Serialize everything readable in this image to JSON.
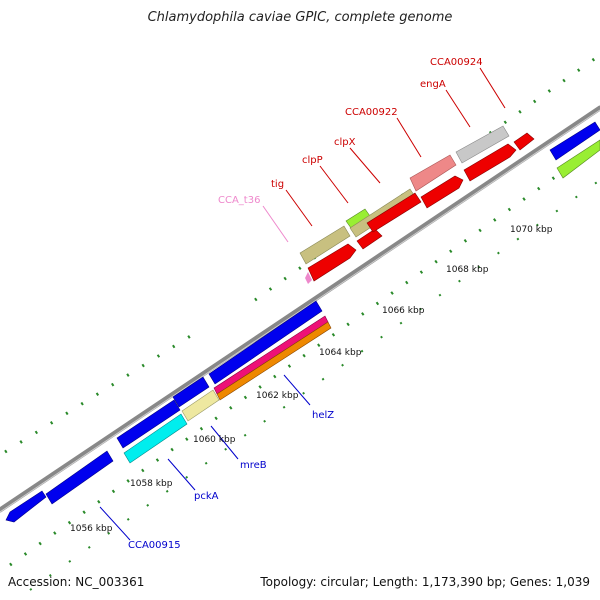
{
  "title": "Chlamydophila caviae GPIC, complete genome",
  "footer": {
    "accession": "Accession: NC_003361",
    "summary": "Topology: circular; Length: 1,173,390 bp; Genes: 1,039"
  },
  "kbp_labels": [
    {
      "text": "1056 kbp",
      "kbp": 1056
    },
    {
      "text": "1058 kbp",
      "kbp": 1058
    },
    {
      "text": "1060 kbp",
      "kbp": 1060
    },
    {
      "text": "1062 kbp",
      "kbp": 1062
    },
    {
      "text": "1064 kbp",
      "kbp": 1064
    },
    {
      "text": "1066 kbp",
      "kbp": 1066
    },
    {
      "text": "1068 kbp",
      "kbp": 1068
    },
    {
      "text": "1070 kbp",
      "kbp": 1070
    }
  ],
  "gene_labels": [
    {
      "text": "CCA00915",
      "color": "#0000cc",
      "strand": "minus"
    },
    {
      "text": "pckA",
      "color": "#0000cc",
      "strand": "minus"
    },
    {
      "text": "mreB",
      "color": "#0000cc",
      "strand": "minus"
    },
    {
      "text": "helZ",
      "color": "#0000cc",
      "strand": "minus"
    },
    {
      "text": "CCA_t36",
      "color": "#ee88cc",
      "strand": "plus"
    },
    {
      "text": "tig",
      "color": "#cc0000",
      "strand": "plus"
    },
    {
      "text": "clpP",
      "color": "#cc0000",
      "strand": "plus"
    },
    {
      "text": "clpX",
      "color": "#cc0000",
      "strand": "plus"
    },
    {
      "text": "CCA00922",
      "color": "#cc0000",
      "strand": "plus"
    },
    {
      "text": "engA",
      "color": "#cc0000",
      "strand": "plus"
    },
    {
      "text": "CCA00924",
      "color": "#cc0000",
      "strand": "plus"
    }
  ],
  "legend_colors": {
    "blue": "#0000ee",
    "red": "#ee0000",
    "cyan": "#00eeee",
    "khaki": "#c8c080",
    "pale_yellow": "#eee8a0",
    "magenta": "#ee1177",
    "orange": "#ee8800",
    "green": "#99ee33",
    "grey": "#c8c8c8",
    "pink": "#ee8888",
    "backbone": "#808080",
    "tick_green": "#2a7a2a"
  }
}
